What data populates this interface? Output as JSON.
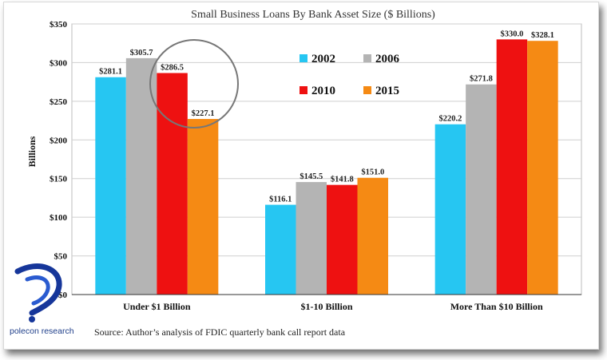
{
  "chart_data": {
    "type": "bar",
    "title": "Small Business Loans By Bank Asset Size ($ Billions)",
    "ylabel": "Billions",
    "xlabel": "",
    "ylim": [
      0,
      350
    ],
    "yticks": [
      "$0",
      "$50",
      "$100",
      "$150",
      "$200",
      "$250",
      "$300",
      "$350"
    ],
    "categories": [
      "Under $1 Billion",
      "$1-10 Billion",
      "More Than $10 Billion"
    ],
    "series": [
      {
        "name": "2002",
        "color": "#26c6f2",
        "values": [
          281.1,
          116.1,
          220.2
        ],
        "labels": [
          "$281.1",
          "$116.1",
          "$220.2"
        ]
      },
      {
        "name": "2006",
        "color": "#b4b4b4",
        "values": [
          305.7,
          145.5,
          271.8
        ],
        "labels": [
          "$305.7",
          "$145.5",
          "$271.8"
        ]
      },
      {
        "name": "2010",
        "color": "#ee1111",
        "values": [
          286.5,
          141.8,
          330.0
        ],
        "labels": [
          "$286.5",
          "$141.8",
          "$330.0"
        ]
      },
      {
        "name": "2015",
        "color": "#f58a14",
        "values": [
          227.1,
          151.0,
          328.1
        ],
        "labels": [
          "$227.1",
          "$151.0",
          "$328.1"
        ]
      }
    ],
    "grid": true,
    "legend_position": "top-center, inside plot"
  },
  "source_note": "Source: Author’s analysis of FDIC quarterly bank call report data",
  "brand": {
    "name": "polecon research",
    "color": "#1f3f8a"
  }
}
